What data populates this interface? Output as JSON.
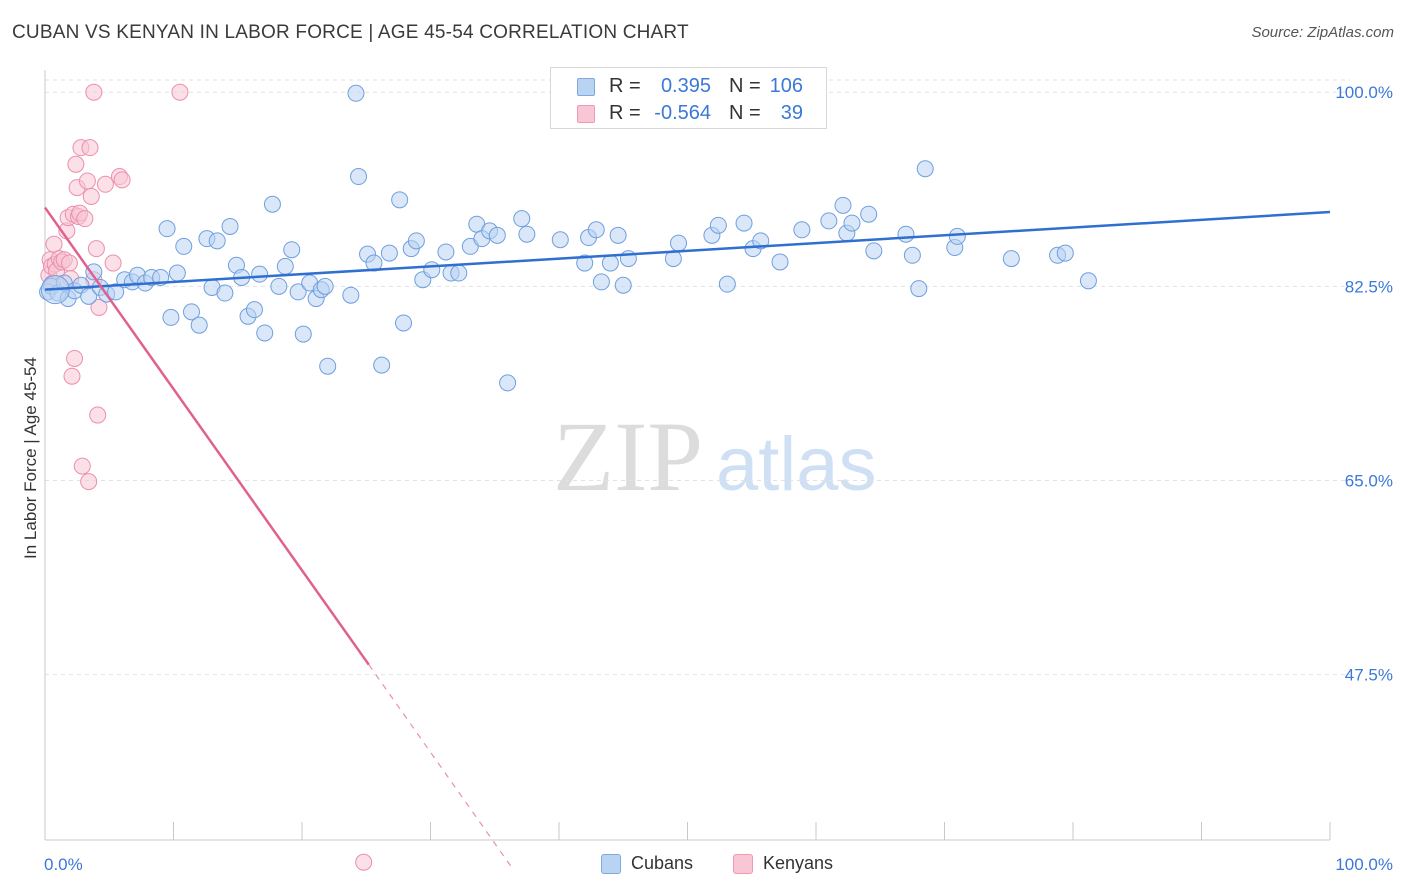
{
  "header": {
    "title": "CUBAN VS KENYAN IN LABOR FORCE | AGE 45-54 CORRELATION CHART",
    "source": "Source: ZipAtlas.com"
  },
  "watermark": {
    "zip": "ZIP",
    "atlas": "atlas"
  },
  "legend_top": {
    "rows": [
      {
        "r_label": "R =",
        "r_value": "0.395",
        "n_label": "N =",
        "n_value": "106"
      },
      {
        "r_label": "R =",
        "r_value": "-0.564",
        "n_label": "N =",
        "n_value": "39"
      }
    ]
  },
  "legend_bottom": {
    "items": [
      {
        "label": "Cubans"
      },
      {
        "label": "Kenyans"
      }
    ]
  },
  "colors": {
    "blue_fill": "#b9d3f3",
    "blue_stroke": "#6f9fdf",
    "blue_line": "#2f6fcf",
    "pink_fill": "#f8c6d5",
    "pink_stroke": "#ec8fae",
    "pink_line": "#e0608f",
    "tick_label": "#3b78d8",
    "grid": "#e2e2e2"
  },
  "chart_data": {
    "type": "scatter",
    "title": "CUBAN VS KENYAN IN LABOR FORCE | AGE 45-54 CORRELATION CHART",
    "xlabel": "",
    "ylabel": "In Labor Force | Age 45-54",
    "xlim": [
      0,
      100
    ],
    "ylim": [
      32.6,
      102.0
    ],
    "x_tick_labels": [
      "0.0%",
      "100.0%"
    ],
    "y_ticks": [
      100.0,
      82.5,
      65.0,
      47.5
    ],
    "y_tick_labels": [
      "100.0%",
      "82.5%",
      "65.0%",
      "47.5%"
    ],
    "grid": "dashed horizontal",
    "legend_position": "top-center",
    "series": [
      {
        "name": "Cubans",
        "r": 0.395,
        "n": 106,
        "trend": {
          "x": [
            0,
            100
          ],
          "y": [
            82.2,
            89.2
          ]
        },
        "points": [
          [
            0.2,
            82.0
          ],
          [
            0.5,
            82.5
          ],
          [
            1.0,
            81.9
          ],
          [
            1.5,
            82.8
          ],
          [
            1.8,
            81.4
          ],
          [
            2.3,
            82.1
          ],
          [
            2.8,
            82.6
          ],
          [
            3.4,
            81.6
          ],
          [
            3.8,
            83.8
          ],
          [
            4.3,
            82.4
          ],
          [
            4.8,
            81.8
          ],
          [
            5.5,
            82.0
          ],
          [
            6.2,
            83.1
          ],
          [
            6.8,
            82.9
          ],
          [
            7.2,
            83.5
          ],
          [
            7.8,
            82.8
          ],
          [
            8.3,
            83.3
          ],
          [
            9.0,
            83.3
          ],
          [
            9.5,
            87.7
          ],
          [
            9.8,
            79.7
          ],
          [
            10.3,
            83.7
          ],
          [
            10.8,
            86.1
          ],
          [
            11.4,
            80.2
          ],
          [
            12.0,
            79.0
          ],
          [
            12.6,
            86.8
          ],
          [
            13.0,
            82.4
          ],
          [
            13.4,
            86.6
          ],
          [
            14.0,
            81.9
          ],
          [
            14.4,
            87.9
          ],
          [
            14.9,
            84.4
          ],
          [
            15.3,
            83.3
          ],
          [
            15.8,
            79.8
          ],
          [
            16.3,
            80.4
          ],
          [
            16.7,
            83.6
          ],
          [
            17.1,
            78.3
          ],
          [
            17.7,
            89.9
          ],
          [
            18.2,
            82.5
          ],
          [
            18.7,
            84.3
          ],
          [
            19.2,
            85.8
          ],
          [
            19.7,
            82.0
          ],
          [
            20.1,
            78.2
          ],
          [
            20.6,
            82.8
          ],
          [
            21.1,
            81.4
          ],
          [
            21.5,
            82.2
          ],
          [
            22.0,
            75.3
          ],
          [
            23.8,
            81.7
          ],
          [
            24.4,
            92.4
          ],
          [
            25.1,
            85.4
          ],
          [
            25.6,
            84.6
          ],
          [
            26.2,
            75.4
          ],
          [
            26.8,
            85.5
          ],
          [
            27.6,
            90.3
          ],
          [
            27.9,
            79.2
          ],
          [
            28.5,
            85.9
          ],
          [
            28.9,
            86.6
          ],
          [
            29.4,
            83.1
          ],
          [
            30.1,
            84.0
          ],
          [
            31.2,
            85.6
          ],
          [
            31.6,
            83.7
          ],
          [
            32.2,
            83.7
          ],
          [
            33.1,
            86.1
          ],
          [
            33.6,
            88.1
          ],
          [
            34.0,
            86.8
          ],
          [
            34.6,
            87.5
          ],
          [
            35.2,
            87.1
          ],
          [
            36.0,
            73.8
          ],
          [
            37.1,
            88.6
          ],
          [
            37.5,
            87.2
          ],
          [
            40.1,
            86.7
          ],
          [
            42.0,
            84.6
          ],
          [
            42.3,
            86.9
          ],
          [
            42.9,
            87.6
          ],
          [
            43.3,
            82.9
          ],
          [
            44.0,
            84.6
          ],
          [
            44.6,
            87.1
          ],
          [
            45.0,
            82.6
          ],
          [
            45.4,
            85.0
          ],
          [
            48.9,
            85.0
          ],
          [
            49.3,
            86.4
          ],
          [
            51.9,
            87.1
          ],
          [
            52.4,
            88.0
          ],
          [
            53.1,
            82.7
          ],
          [
            54.4,
            88.2
          ],
          [
            55.1,
            85.9
          ],
          [
            55.7,
            86.6
          ],
          [
            57.2,
            84.7
          ],
          [
            58.9,
            87.6
          ],
          [
            61.0,
            88.4
          ],
          [
            62.1,
            89.8
          ],
          [
            62.4,
            87.3
          ],
          [
            62.8,
            88.2
          ],
          [
            64.1,
            89.0
          ],
          [
            64.5,
            85.7
          ],
          [
            67.0,
            87.2
          ],
          [
            67.5,
            85.3
          ],
          [
            68.0,
            82.3
          ],
          [
            68.5,
            93.1
          ],
          [
            70.8,
            86.0
          ],
          [
            71.0,
            87.0
          ],
          [
            75.2,
            85.0
          ],
          [
            78.8,
            85.3
          ],
          [
            79.4,
            85.5
          ],
          [
            81.2,
            83.0
          ],
          [
            24.2,
            99.9
          ],
          [
            21.8,
            82.5
          ],
          [
            0.8,
            82.2
          ]
        ]
      },
      {
        "name": "Kenyans",
        "r": -0.564,
        "n": 39,
        "trend": {
          "x": [
            0,
            25.2
          ],
          "y": [
            89.6,
            48.4
          ],
          "dashed_to": {
            "x": 36.4,
            "y": 30.0
          }
        },
        "points": [
          [
            0.3,
            83.5
          ],
          [
            0.4,
            84.9
          ],
          [
            0.5,
            84.3
          ],
          [
            0.6,
            82.8
          ],
          [
            0.7,
            86.3
          ],
          [
            0.8,
            84.5
          ],
          [
            0.9,
            83.9
          ],
          [
            1.1,
            85.0
          ],
          [
            1.3,
            84.7
          ],
          [
            1.5,
            84.9
          ],
          [
            1.7,
            87.5
          ],
          [
            1.8,
            88.7
          ],
          [
            1.9,
            84.6
          ],
          [
            2.0,
            83.2
          ],
          [
            2.1,
            74.4
          ],
          [
            2.2,
            89.0
          ],
          [
            2.3,
            76.0
          ],
          [
            2.4,
            93.5
          ],
          [
            2.5,
            91.4
          ],
          [
            2.6,
            88.8
          ],
          [
            2.7,
            89.1
          ],
          [
            2.8,
            95.0
          ],
          [
            2.9,
            66.3
          ],
          [
            3.1,
            88.6
          ],
          [
            3.3,
            92.0
          ],
          [
            3.4,
            64.9
          ],
          [
            3.5,
            95.0
          ],
          [
            3.6,
            90.6
          ],
          [
            3.8,
            83.1
          ],
          [
            4.0,
            85.9
          ],
          [
            4.1,
            70.9
          ],
          [
            4.2,
            80.6
          ],
          [
            4.7,
            91.7
          ],
          [
            5.3,
            84.6
          ],
          [
            5.8,
            92.4
          ],
          [
            6.0,
            92.1
          ],
          [
            3.8,
            100.0
          ],
          [
            10.5,
            100.0
          ],
          [
            24.8,
            30.6
          ]
        ]
      }
    ]
  }
}
